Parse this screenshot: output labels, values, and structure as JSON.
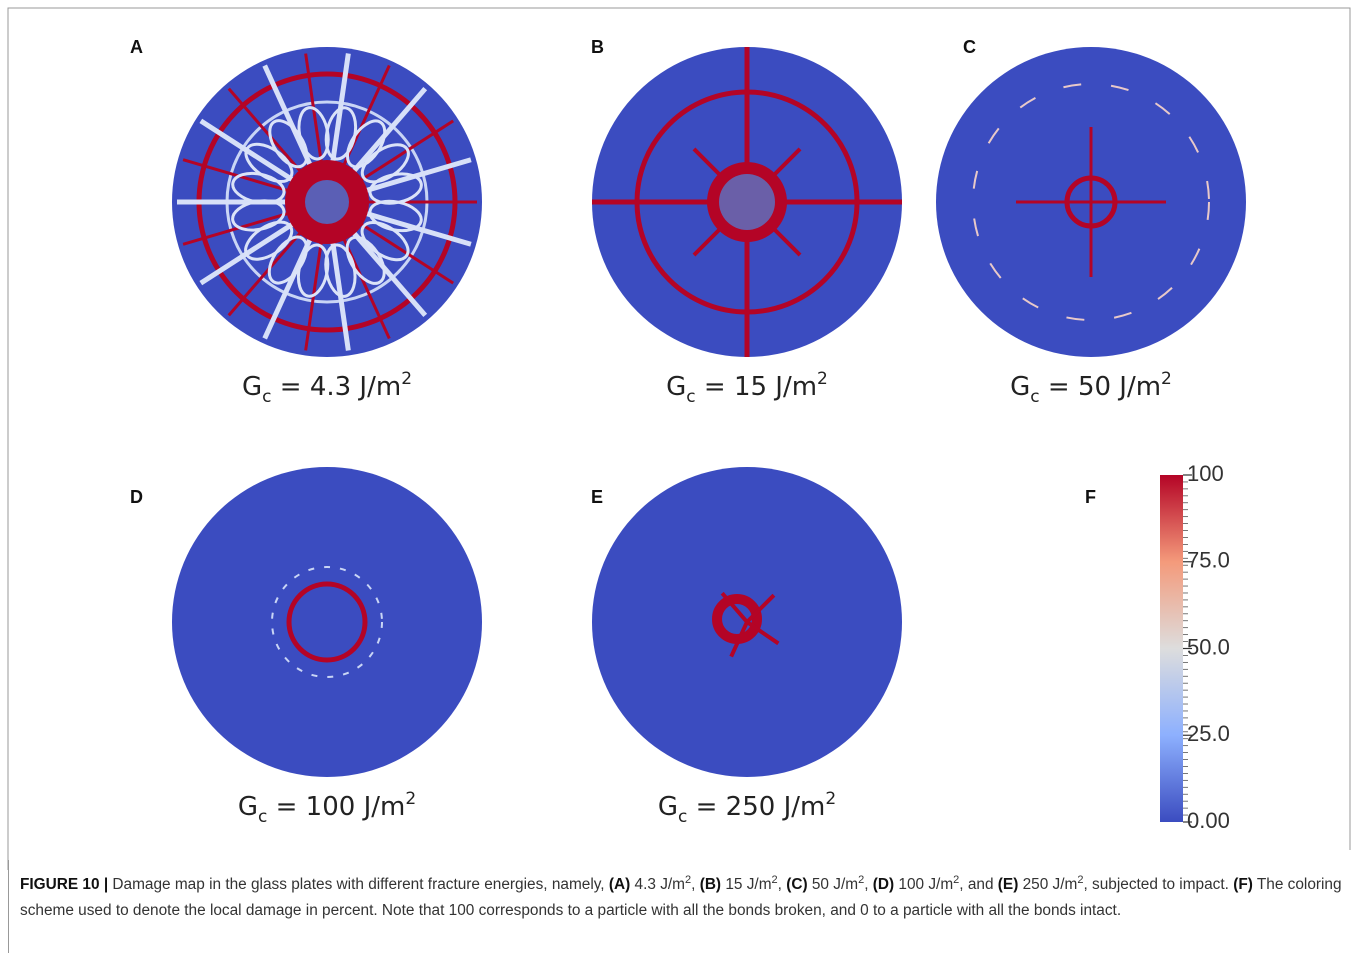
{
  "panels": [
    {
      "label": "A",
      "caption": {
        "symbol": "G",
        "subscript": "c",
        "text": " = 4.3 J/m",
        "superscript": "2"
      }
    },
    {
      "label": "B",
      "caption": {
        "symbol": "G",
        "subscript": "c",
        "text": " = 15 J/m",
        "superscript": "2"
      }
    },
    {
      "label": "C",
      "caption": {
        "symbol": "G",
        "subscript": "c",
        "text": " = 50 J/m",
        "superscript": "2"
      }
    },
    {
      "label": "D",
      "caption": {
        "symbol": "G",
        "subscript": "c",
        "text": " = 100 J/m",
        "superscript": "2"
      }
    },
    {
      "label": "E",
      "caption": {
        "symbol": "G",
        "subscript": "c",
        "text": " = 250 J/m",
        "superscript": "2"
      }
    }
  ],
  "colorbar": {
    "label": "F",
    "range": [
      0,
      100
    ],
    "ticks": [
      100,
      {
        "value": 75,
        "label": "75.0"
      },
      {
        "value": 50,
        "label": "50.0"
      },
      {
        "value": 25,
        "label": "25.0"
      },
      {
        "value": 0,
        "label": "0.00"
      }
    ]
  },
  "caption": [
    {
      "text": "FIGURE 10 |",
      "bold": true
    },
    {
      "text": " Damage map in the glass plates with different fracture energies, namely, "
    },
    {
      "text": "(A)",
      "bold": true
    },
    {
      "text": " 4.3 J/m"
    },
    {
      "text": "2",
      "sup": true
    },
    {
      "text": ", "
    },
    {
      "text": "(B)",
      "bold": true
    },
    {
      "text": " 15 J/m"
    },
    {
      "text": "2",
      "sup": true
    },
    {
      "text": ", "
    },
    {
      "text": "(C)",
      "bold": true
    },
    {
      "text": " 50 J/m"
    },
    {
      "text": "2",
      "sup": true
    },
    {
      "text": ", "
    },
    {
      "text": "(D)",
      "bold": true
    },
    {
      "text": " 100 J/m"
    },
    {
      "text": "2",
      "sup": true
    },
    {
      "text": ", and "
    },
    {
      "text": "(E)",
      "bold": true
    },
    {
      "text": " 250 J/m"
    },
    {
      "text": "2",
      "sup": true
    },
    {
      "text": ", subjected to impact. "
    },
    {
      "text": "(F)",
      "bold": true
    },
    {
      "text": " The coloring scheme used to denote the local damage in percent. Note that 100 corresponds to a particle with all the bonds broken, and 0 to a particle with all the bonds intact."
    }
  ]
}
